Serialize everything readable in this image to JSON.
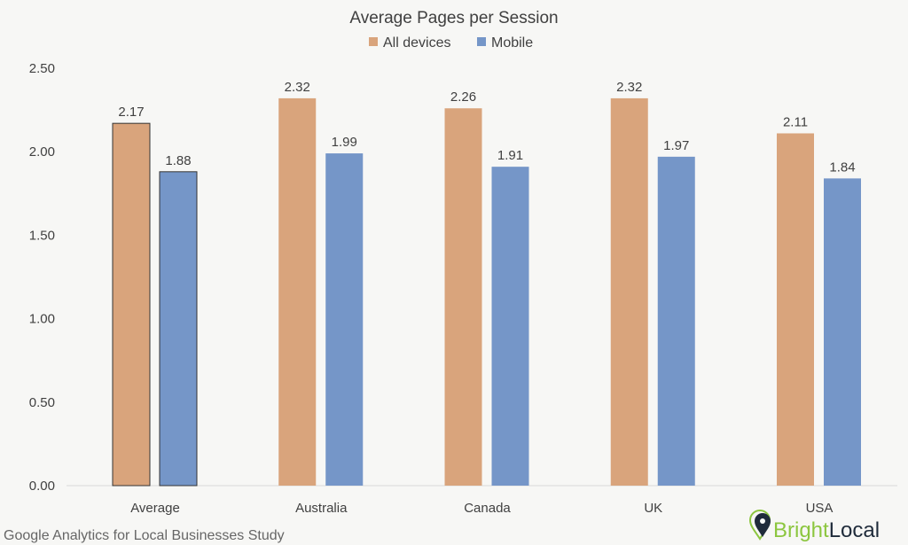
{
  "chart_data": {
    "type": "bar",
    "title": "Average Pages per Session",
    "categories": [
      "Average",
      "Australia",
      "Canada",
      "UK",
      "USA"
    ],
    "series": [
      {
        "name": "All devices",
        "values": [
          2.17,
          2.32,
          2.26,
          2.32,
          2.11
        ],
        "color": "#d9a47c"
      },
      {
        "name": "Mobile",
        "values": [
          1.88,
          1.99,
          1.91,
          1.97,
          1.84
        ],
        "color": "#7596c8"
      }
    ],
    "yticks": [
      "0.00",
      "0.50",
      "1.00",
      "1.50",
      "2.00",
      "2.50"
    ],
    "ylim": [
      0,
      2.5
    ],
    "xlabel": "",
    "ylabel": "",
    "grid": false,
    "legend_position": "top",
    "highlighted_category": "Average"
  },
  "footer": {
    "source": "Google Analytics for Local Businesses Study",
    "logo": {
      "part1": "Bright",
      "part2": "Local",
      "color1": "#8cc63f",
      "color2": "#1f2b3a"
    }
  }
}
